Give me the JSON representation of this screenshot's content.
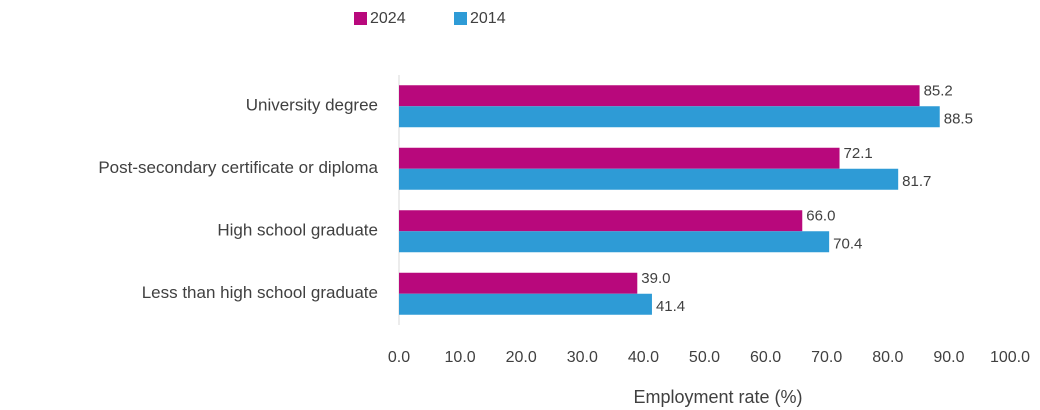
{
  "chart_data": {
    "type": "bar",
    "orientation": "horizontal",
    "x_label": "Employment rate (%)",
    "categories": [
      "University degree",
      "Post-secondary certificate or diploma",
      "High school graduate",
      "Less than high school graduate"
    ],
    "series": [
      {
        "name": "2024",
        "color": "#b8087c",
        "values": [
          85.2,
          72.1,
          66.0,
          39.0
        ],
        "value_labels": [
          "85.2",
          "72.1",
          "66.0",
          "39.0"
        ]
      },
      {
        "name": "2014",
        "color": "#2e9bd6",
        "values": [
          88.5,
          81.7,
          70.4,
          41.4
        ],
        "value_labels": [
          "88.5",
          "81.7",
          "70.4",
          "41.4"
        ]
      }
    ],
    "xlim": [
      0,
      100
    ],
    "xticks": [
      {
        "value": 0,
        "label": "0.0"
      },
      {
        "value": 10,
        "label": "10.0"
      },
      {
        "value": 20,
        "label": "20.0"
      },
      {
        "value": 30,
        "label": "30.0"
      },
      {
        "value": 40,
        "label": "40.0"
      },
      {
        "value": 50,
        "label": "50.0"
      },
      {
        "value": 60,
        "label": "60.0"
      },
      {
        "value": 70,
        "label": "70.0"
      },
      {
        "value": 80,
        "label": "80.0"
      },
      {
        "value": 90,
        "label": "90.0"
      },
      {
        "value": 100,
        "label": "100.0"
      }
    ],
    "legend": "top",
    "grid": false
  }
}
